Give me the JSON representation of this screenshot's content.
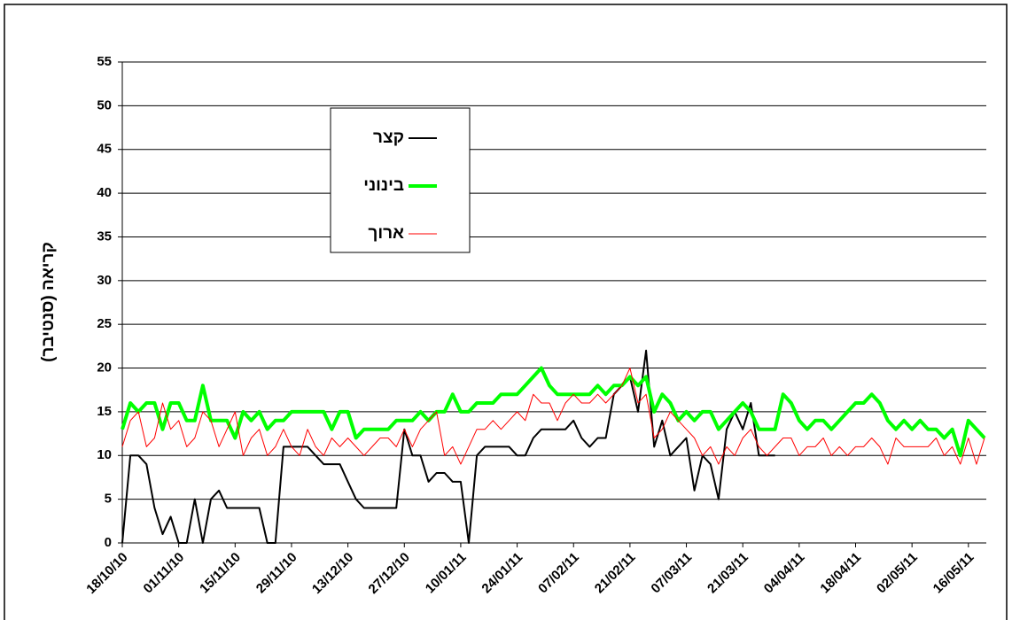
{
  "chart_data": {
    "type": "line",
    "y_label": "קריאה (סנטיבר)",
    "categories": [
      "18/10/10",
      null,
      null,
      null,
      null,
      null,
      null,
      "01/11/10",
      null,
      null,
      null,
      null,
      null,
      null,
      "15/11/10",
      null,
      null,
      null,
      null,
      null,
      null,
      "29/11/10",
      null,
      null,
      null,
      null,
      null,
      null,
      "13/12/10",
      null,
      null,
      null,
      null,
      null,
      null,
      "27/12/10",
      null,
      null,
      null,
      null,
      null,
      null,
      "10/01/11",
      null,
      null,
      null,
      null,
      null,
      null,
      "24/01/11",
      null,
      null,
      null,
      null,
      null,
      null,
      "07/02/11",
      null,
      null,
      null,
      null,
      null,
      null,
      "21/02/11",
      null,
      null,
      null,
      null,
      null,
      null,
      "07/03/11",
      null,
      null,
      null,
      null,
      null,
      null,
      "21/03/11",
      null,
      null,
      null,
      null,
      null,
      null,
      "04/04/11",
      null,
      null,
      null,
      null,
      null,
      null,
      "18/04/11",
      null,
      null,
      null,
      null,
      null,
      null,
      "02/05/11",
      null,
      null,
      null,
      null,
      null,
      null,
      "16/05/11",
      null,
      null
    ],
    "series": [
      {
        "name": "קצר",
        "color": "#000000",
        "width": 2,
        "values": [
          0,
          10,
          10,
          9,
          4,
          1,
          3,
          0,
          0,
          5,
          0,
          5,
          6,
          4,
          4,
          4,
          4,
          4,
          0,
          0,
          11,
          11,
          11,
          11,
          10,
          9,
          9,
          9,
          7,
          5,
          4,
          4,
          4,
          4,
          4,
          13,
          10,
          10,
          7,
          8,
          8,
          7,
          7,
          0,
          10,
          11,
          11,
          11,
          11,
          10,
          10,
          12,
          13,
          13,
          13,
          13,
          14,
          12,
          11,
          12,
          12,
          17,
          18,
          19,
          15,
          22,
          11,
          14,
          10,
          11,
          12,
          6,
          10,
          9,
          5,
          13,
          15,
          13,
          16,
          10,
          10,
          10,
          null,
          null,
          null,
          null,
          null,
          null,
          null,
          null,
          null,
          null,
          null,
          null,
          null,
          null,
          null,
          null,
          null,
          null,
          null,
          null,
          null,
          null,
          null,
          null,
          null,
          null
        ]
      },
      {
        "name": "בינוני",
        "color": "#00ff00",
        "width": 4,
        "values": [
          13,
          16,
          15,
          16,
          16,
          13,
          16,
          16,
          14,
          14,
          18,
          14,
          14,
          14,
          12,
          15,
          14,
          15,
          13,
          14,
          14,
          15,
          15,
          15,
          15,
          15,
          13,
          15,
          15,
          12,
          13,
          13,
          13,
          13,
          14,
          14,
          14,
          15,
          14,
          15,
          15,
          17,
          15,
          15,
          16,
          16,
          16,
          17,
          17,
          17,
          18,
          19,
          20,
          18,
          17,
          17,
          17,
          17,
          17,
          18,
          17,
          18,
          18,
          19,
          18,
          19,
          15,
          17,
          16,
          14,
          15,
          14,
          15,
          15,
          13,
          14,
          15,
          16,
          15,
          13,
          13,
          13,
          17,
          16,
          14,
          13,
          14,
          14,
          13,
          14,
          15,
          16,
          16,
          17,
          16,
          14,
          13,
          14,
          13,
          14,
          13,
          13,
          12,
          13,
          10,
          14,
          13,
          12
        ]
      },
      {
        "name": "ארוך",
        "color": "#ff0000",
        "width": 1,
        "values": [
          11,
          14,
          15,
          11,
          12,
          16,
          13,
          14,
          11,
          12,
          15,
          14,
          11,
          13,
          15,
          10,
          12,
          13,
          10,
          11,
          13,
          11,
          10,
          13,
          11,
          10,
          12,
          11,
          12,
          11,
          10,
          11,
          12,
          12,
          11,
          13,
          11,
          13,
          14,
          15,
          10,
          11,
          9,
          11,
          13,
          13,
          14,
          13,
          14,
          15,
          14,
          17,
          16,
          16,
          14,
          16,
          17,
          16,
          16,
          17,
          16,
          17,
          18,
          20,
          16,
          17,
          12,
          13,
          15,
          14,
          13,
          12,
          10,
          11,
          9,
          11,
          10,
          12,
          13,
          11,
          10,
          11,
          12,
          12,
          10,
          11,
          11,
          12,
          10,
          11,
          10,
          11,
          11,
          12,
          11,
          9,
          12,
          11,
          11,
          11,
          11,
          12,
          10,
          11,
          9,
          12,
          9,
          12
        ]
      }
    ],
    "ylim": [
      0,
      55
    ],
    "yticks": [
      0,
      5,
      10,
      15,
      20,
      25,
      30,
      35,
      40,
      45,
      50,
      55
    ],
    "grid": true
  }
}
